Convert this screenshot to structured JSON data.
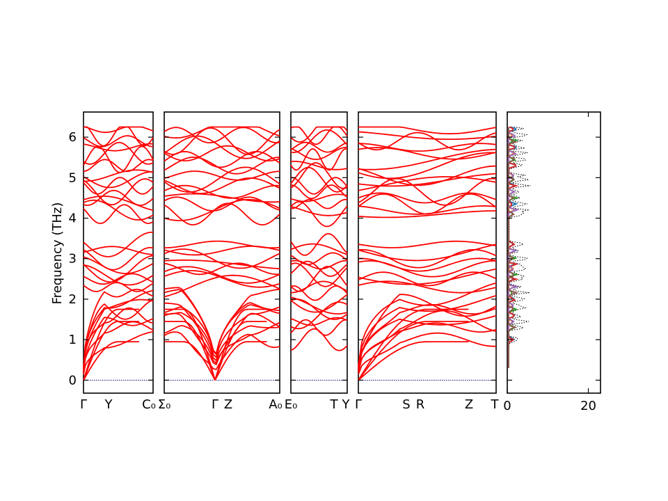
{
  "chart_data": {
    "type": "line",
    "title": "",
    "ylabel": "Frequency (THz)",
    "ylim": [
      -0.32,
      6.62
    ],
    "yticks": [
      0,
      1,
      2,
      3,
      4,
      5,
      6
    ],
    "band_color": "#ff0000",
    "zero_line_color": "#000080",
    "panels": [
      {
        "name": "segment-1",
        "labels": [
          "Γ",
          "Y",
          "C₀"
        ],
        "label_positions": [
          0,
          0.36,
          1
        ]
      },
      {
        "name": "segment-2",
        "labels": [
          "Σ₀",
          "Γ",
          "Z"
        ],
        "label_positions": [
          0,
          0.44,
          0.55
        ]
      },
      {
        "name": "segment-3",
        "labels": [
          "A₀",
          "E₀"
        ],
        "label_positions": [
          0.9,
          1.0
        ]
      },
      {
        "name": "segment-4",
        "labels": [
          "T",
          "Y"
        ],
        "label_positions": [
          0.76,
          0.97
        ]
      },
      {
        "name": "segment-5",
        "labels": [
          "Γ",
          "S",
          "R",
          "Z",
          "T"
        ],
        "label_positions": [
          0,
          0.35,
          0.45,
          0.79,
          1
        ]
      }
    ],
    "dos": {
      "xlim": [
        0,
        23
      ],
      "xticks": [
        0,
        20
      ],
      "total_dos_style": "dotted",
      "total_dos_color": "#000000",
      "series_colors": [
        "#1f77b4",
        "#ff7f0e",
        "#2ca02c",
        "#d62728",
        "#9467bd",
        "#8c564b"
      ]
    }
  }
}
